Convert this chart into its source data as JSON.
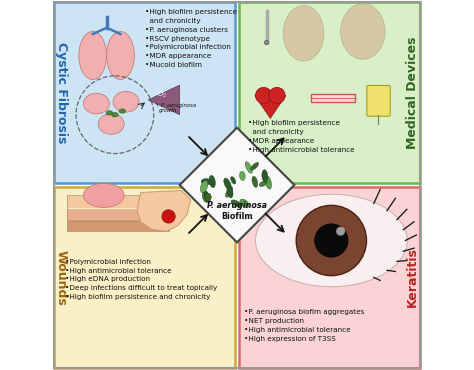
{
  "fig_width": 4.74,
  "fig_height": 3.7,
  "dpi": 100,
  "bg_color": "#ffffff",
  "quadrant_colors": {
    "top_left": "#cde4f5",
    "top_right": "#d8efc8",
    "bottom_left": "#faf0c8",
    "bottom_right": "#fad4d4"
  },
  "border_colors": {
    "top_left": "#5599cc",
    "top_right": "#66bb44",
    "bottom_left": "#ccaa33",
    "bottom_right": "#dd6666"
  },
  "quadrant_title_colors": {
    "top_left": "#2266aa",
    "top_right": "#336622",
    "bottom_left": "#996611",
    "bottom_right": "#bb2222"
  },
  "cf_bullets": "•High biofilm persistence\n  and chronicity\n•P. aeruginosa clusters\n•RSCV phenotype\n•Polymicrobial infection\n•MDR appearance\n•Mucoid biofilm",
  "md_bullets": "•High biofilm persistence\n  and chronicity\n•MDR appearance\n•High antimicrobial tolerance",
  "wounds_bullets": "•Polymicrobial infection\n•High antimicrobial tolerance\n•High eDNA production\n•Deep infections difficult to treat topically\n•High biofilm persistence and chronicity",
  "keratitis_bullets": "•P. aeruginosa biofim aggregates\n•NET production\n•High antimicrobial tolerance\n•High expression of T3SS",
  "arrow_color": "#111111",
  "font_size_bullets": 5.2,
  "font_size_title": 9.0
}
